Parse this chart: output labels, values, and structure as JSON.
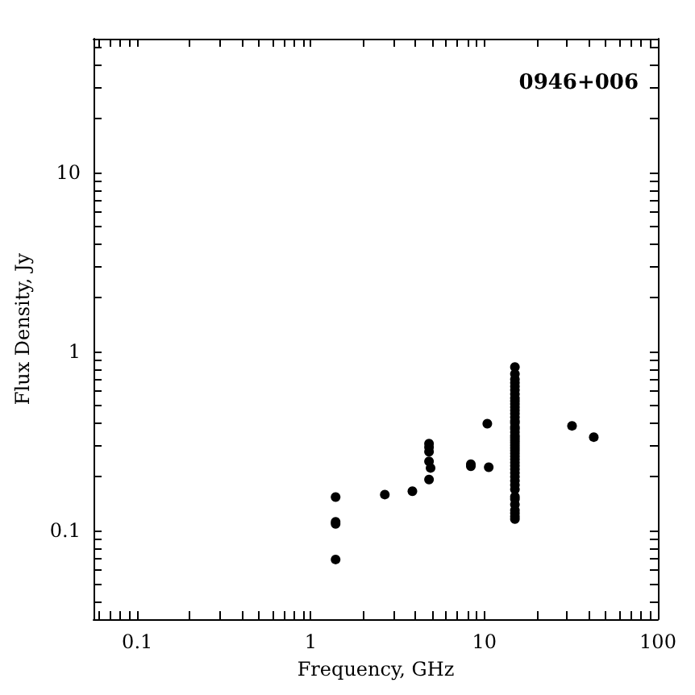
{
  "chart_data": {
    "type": "scatter",
    "title": "0946+006",
    "xlabel": "Frequency, GHz",
    "ylabel": "Flux Density, Jy",
    "log": "xy",
    "grid": false,
    "marker": "circle",
    "xlim": [
      0.056,
      100
    ],
    "ylim": [
      0.032,
      56
    ],
    "xticks": [
      {
        "value": 0.06,
        "label": null
      },
      {
        "value": 0.07,
        "label": null
      },
      {
        "value": 0.08,
        "label": null
      },
      {
        "value": 0.09,
        "label": null
      },
      0.1,
      {
        "value": 0.2,
        "label": null
      },
      {
        "value": 0.3,
        "label": null
      },
      {
        "value": 0.4,
        "label": null
      },
      {
        "value": 0.5,
        "label": null
      },
      {
        "value": 0.6,
        "label": null
      },
      {
        "value": 0.7,
        "label": null
      },
      {
        "value": 0.8,
        "label": null
      },
      {
        "value": 0.9,
        "label": null
      },
      1,
      {
        "value": 2,
        "label": null
      },
      {
        "value": 3,
        "label": null
      },
      {
        "value": 4,
        "label": null
      },
      {
        "value": 5,
        "label": null
      },
      {
        "value": 6,
        "label": null
      },
      {
        "value": 7,
        "label": null
      },
      {
        "value": 8,
        "label": null
      },
      {
        "value": 9,
        "label": null
      },
      10,
      {
        "value": 20,
        "label": null
      },
      {
        "value": 30,
        "label": null
      },
      {
        "value": 40,
        "label": null
      },
      {
        "value": 50,
        "label": null
      },
      {
        "value": 60,
        "label": null
      },
      {
        "value": 70,
        "label": null
      },
      {
        "value": 80,
        "label": null
      },
      {
        "value": 90,
        "label": null
      },
      100
    ],
    "yticks": [
      {
        "value": 0.04,
        "label": null
      },
      {
        "value": 0.05,
        "label": null
      },
      {
        "value": 0.06,
        "label": null
      },
      {
        "value": 0.07,
        "label": null
      },
      {
        "value": 0.08,
        "label": null
      },
      {
        "value": 0.09,
        "label": null
      },
      0.1,
      {
        "value": 0.2,
        "label": null
      },
      {
        "value": 0.3,
        "label": null
      },
      {
        "value": 0.4,
        "label": null
      },
      {
        "value": 0.5,
        "label": null
      },
      {
        "value": 0.6,
        "label": null
      },
      {
        "value": 0.7,
        "label": null
      },
      {
        "value": 0.8,
        "label": null
      },
      {
        "value": 0.9,
        "label": null
      },
      1,
      {
        "value": 2,
        "label": null
      },
      {
        "value": 3,
        "label": null
      },
      {
        "value": 4,
        "label": null
      },
      {
        "value": 5,
        "label": null
      },
      {
        "value": 6,
        "label": null
      },
      {
        "value": 7,
        "label": null
      },
      {
        "value": 8,
        "label": null
      },
      {
        "value": 9,
        "label": null
      },
      10,
      {
        "value": 20,
        "label": null
      },
      {
        "value": 30,
        "label": null
      },
      {
        "value": 40,
        "label": null
      },
      {
        "value": 50,
        "label": null
      }
    ],
    "series": [
      {
        "color": "#000000",
        "x": [
          1.39,
          1.39,
          1.39,
          1.39,
          2.67,
          3.85,
          4.8,
          4.8,
          4.8,
          4.8,
          4.9,
          4.8,
          8.36,
          8.36,
          10.4,
          10.6,
          15,
          15,
          15,
          15,
          15,
          15,
          15,
          15,
          15,
          15,
          15,
          15,
          15,
          15,
          15,
          15,
          15,
          15,
          15,
          15,
          15,
          15,
          15,
          15,
          15,
          15,
          15,
          15,
          15,
          15,
          15,
          15,
          15,
          15,
          15,
          15,
          15,
          15,
          15,
          15,
          15,
          15,
          15,
          15,
          32,
          42.7
        ],
        "values": [
          0.154,
          0.109,
          0.112,
          0.069,
          0.159,
          0.166,
          0.306,
          0.292,
          0.276,
          0.244,
          0.224,
          0.193,
          0.229,
          0.235,
          0.396,
          0.226,
          0.82,
          0.75,
          0.7,
          0.67,
          0.64,
          0.61,
          0.58,
          0.55,
          0.53,
          0.51,
          0.49,
          0.47,
          0.45,
          0.43,
          0.41,
          0.4,
          0.38,
          0.37,
          0.355,
          0.34,
          0.33,
          0.32,
          0.31,
          0.3,
          0.29,
          0.28,
          0.27,
          0.26,
          0.25,
          0.24,
          0.23,
          0.22,
          0.21,
          0.2,
          0.19,
          0.18,
          0.17,
          0.155,
          0.15,
          0.14,
          0.13,
          0.125,
          0.12,
          0.116,
          0.385,
          0.333
        ]
      }
    ]
  }
}
